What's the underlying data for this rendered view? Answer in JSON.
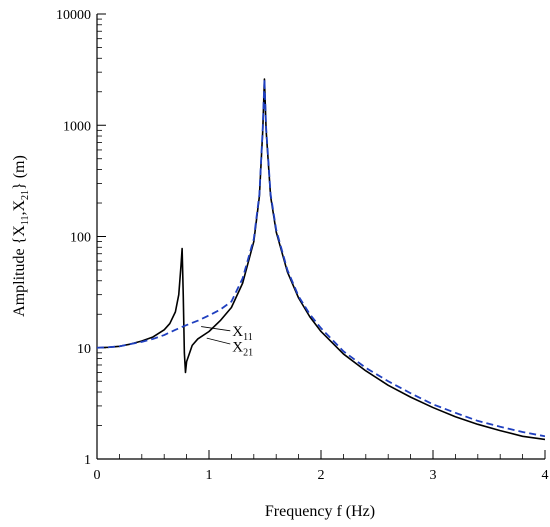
{
  "chart_data": {
    "type": "line",
    "xlabel": "Frequency f (Hz)",
    "ylabel": {
      "prefix": "Amplitude {X",
      "sub1": "11",
      "mid": ",X",
      "sub2": "21",
      "suffix": "} (m)"
    },
    "xlim": [
      0,
      4
    ],
    "ylim": [
      1,
      10000
    ],
    "y_scale": "log",
    "grid": false,
    "x_ticks": [
      {
        "value": 0,
        "label": "0"
      },
      {
        "value": 1,
        "label": "1"
      },
      {
        "value": 2,
        "label": "2"
      },
      {
        "value": 3,
        "label": "3"
      },
      {
        "value": 4,
        "label": "4"
      }
    ],
    "y_ticks": [
      {
        "value": 1,
        "label": "1"
      },
      {
        "value": 10,
        "label": "10"
      },
      {
        "value": 100,
        "label": "100"
      },
      {
        "value": 1000,
        "label": "1000"
      },
      {
        "value": 10000,
        "label": "10000"
      }
    ],
    "series": [
      {
        "name": "X11",
        "color": "#000000",
        "dash": "solid",
        "points": [
          [
            0,
            10
          ],
          [
            0.1,
            10.1
          ],
          [
            0.2,
            10.3
          ],
          [
            0.3,
            10.8
          ],
          [
            0.4,
            11.5
          ],
          [
            0.5,
            12.5
          ],
          [
            0.6,
            14.5
          ],
          [
            0.65,
            16.5
          ],
          [
            0.7,
            21
          ],
          [
            0.73,
            30
          ],
          [
            0.75,
            55
          ],
          [
            0.76,
            78
          ],
          [
            0.77,
            30
          ],
          [
            0.78,
            9
          ],
          [
            0.79,
            6
          ],
          [
            0.8,
            7.5
          ],
          [
            0.85,
            10.5
          ],
          [
            0.9,
            12
          ],
          [
            1.0,
            14
          ],
          [
            1.1,
            17.5
          ],
          [
            1.2,
            23
          ],
          [
            1.3,
            38
          ],
          [
            1.4,
            90
          ],
          [
            1.45,
            230
          ],
          [
            1.48,
            900
          ],
          [
            1.495,
            2600
          ],
          [
            1.51,
            900
          ],
          [
            1.55,
            230
          ],
          [
            1.6,
            110
          ],
          [
            1.7,
            48
          ],
          [
            1.8,
            28
          ],
          [
            1.9,
            19
          ],
          [
            2.0,
            14
          ],
          [
            2.2,
            8.8
          ],
          [
            2.4,
            6.2
          ],
          [
            2.6,
            4.6
          ],
          [
            2.8,
            3.6
          ],
          [
            3.0,
            2.9
          ],
          [
            3.2,
            2.4
          ],
          [
            3.4,
            2.05
          ],
          [
            3.6,
            1.8
          ],
          [
            3.8,
            1.6
          ],
          [
            4.0,
            1.5
          ]
        ]
      },
      {
        "name": "X21",
        "color": "#1f3fbf",
        "dash": "dashed",
        "points": [
          [
            0,
            10
          ],
          [
            0.1,
            10.1
          ],
          [
            0.2,
            10.3
          ],
          [
            0.3,
            10.8
          ],
          [
            0.4,
            11.3
          ],
          [
            0.5,
            12
          ],
          [
            0.6,
            13
          ],
          [
            0.7,
            14.5
          ],
          [
            0.8,
            16
          ],
          [
            0.9,
            17.5
          ],
          [
            1.0,
            19.5
          ],
          [
            1.1,
            22
          ],
          [
            1.2,
            26
          ],
          [
            1.3,
            42
          ],
          [
            1.4,
            95
          ],
          [
            1.45,
            240
          ],
          [
            1.48,
            950
          ],
          [
            1.495,
            2600
          ],
          [
            1.51,
            950
          ],
          [
            1.55,
            240
          ],
          [
            1.6,
            115
          ],
          [
            1.7,
            50
          ],
          [
            1.8,
            29
          ],
          [
            1.9,
            20
          ],
          [
            2.0,
            15
          ],
          [
            2.2,
            9.3
          ],
          [
            2.4,
            6.6
          ],
          [
            2.6,
            5
          ],
          [
            2.8,
            3.9
          ],
          [
            3.0,
            3.1
          ],
          [
            3.2,
            2.6
          ],
          [
            3.4,
            2.2
          ],
          [
            3.6,
            1.95
          ],
          [
            3.8,
            1.75
          ],
          [
            4.0,
            1.6
          ]
        ]
      }
    ],
    "annotations": [
      {
        "base": "X",
        "sub": "11"
      },
      {
        "base": "X",
        "sub": "21"
      }
    ]
  }
}
